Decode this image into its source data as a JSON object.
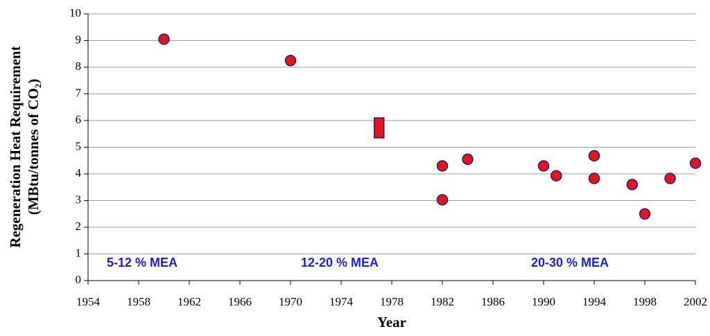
{
  "chart_data": {
    "type": "scatter",
    "y_title_lines": [
      "Regeneration Heat Requirement",
      "(MBtu/tonnes of CO₂)"
    ],
    "x_title": "Year",
    "xlim": [
      1954,
      2002
    ],
    "xticks": [
      1954,
      1958,
      1962,
      1966,
      1970,
      1974,
      1978,
      1982,
      1986,
      1990,
      1994,
      1998,
      2002
    ],
    "ylim": [
      0,
      10
    ],
    "yticks": [
      0,
      1,
      2,
      3,
      4,
      5,
      6,
      7,
      8,
      9,
      10
    ],
    "grid": true,
    "series": [
      {
        "color": "#e8141c",
        "edge_color": "#1a1a8c",
        "x": [
          1960,
          1970,
          1982,
          1982,
          1984,
          1990,
          1991,
          1994,
          1994,
          1997,
          1998,
          2000,
          2002
        ],
        "values": [
          9.05,
          8.25,
          4.3,
          3.03,
          4.55,
          4.3,
          3.93,
          4.68,
          3.83,
          3.6,
          2.5,
          3.83,
          4.4
        ]
      }
    ],
    "ranges": [
      {
        "x": 1977,
        "low": 5.35,
        "high": 6.1
      }
    ],
    "annotations": [
      "5-12 % MEA",
      "12-20 % MEA",
      "20-30 % MEA"
    ]
  }
}
